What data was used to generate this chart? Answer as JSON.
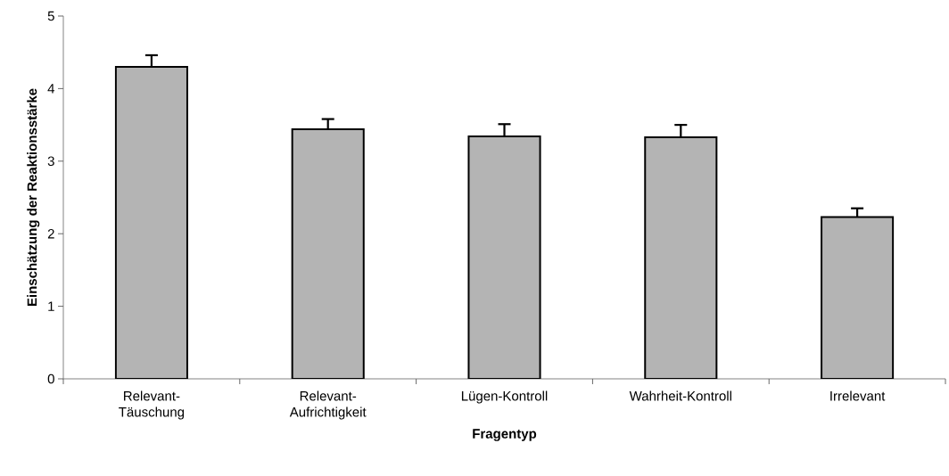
{
  "chart_data": {
    "type": "bar",
    "xlabel": "Fragentyp",
    "ylabel": "Einschätzung der Reaktionsstärke",
    "categories": [
      "Relevant-Täuschung",
      "Relevant-Aufrichtigkeit",
      "Lügen-Kontroll",
      "Wahrheit-Kontroll",
      "Irrelevant"
    ],
    "values": [
      4.3,
      3.44,
      3.34,
      3.33,
      2.23
    ],
    "errors": [
      [
        4.3,
        4.46
      ],
      [
        3.44,
        3.58
      ],
      [
        3.34,
        3.51
      ],
      [
        3.33,
        3.5
      ],
      [
        2.23,
        2.35
      ]
    ],
    "color": "#b4b4b4",
    "ylim": [
      0,
      5
    ],
    "yticks": [
      0,
      1,
      2,
      3,
      4,
      5
    ],
    "grid": false
  }
}
